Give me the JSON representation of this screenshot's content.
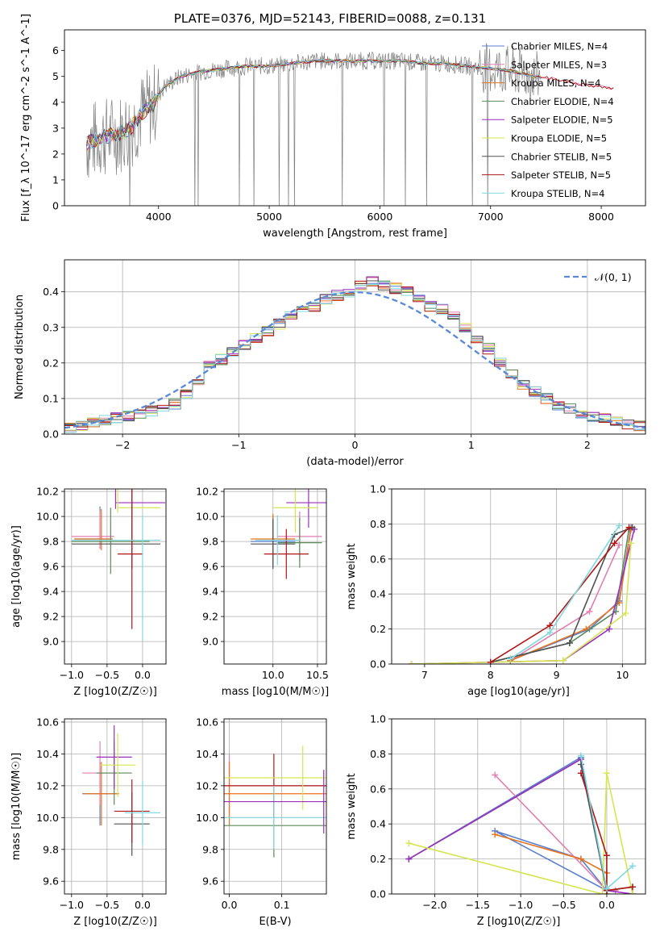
{
  "figure_title": "PLATE=0376, MJD=52143, FIBERID=0088, z=0.131",
  "colors": {
    "Chabrier MILES": "#5b7fd0",
    "Salpeter MILES": "#e07fb0",
    "Kroupa MILES": "#e8731e",
    "Chabrier ELODIE": "#5a8a5a",
    "Salpeter ELODIE": "#9b2fbe",
    "Kroupa ELODIE": "#d6e550",
    "Chabrier STELIB": "#505050",
    "Salpeter STELIB": "#b01818",
    "Kroupa STELIB": "#80d8e0",
    "data": "#808080",
    "normal": "#5a88d8"
  },
  "chart_data": [
    {
      "type": "line",
      "title": "PLATE=0376, MJD=52143, FIBERID=0088, z=0.131",
      "xlabel": "wavelength [Angstrom, rest frame]",
      "ylabel": "Flux [f_λ 10^-17 erg cm^-2 s^-1 A^-1]",
      "xlim": [
        3150,
        8400
      ],
      "ylim": [
        0,
        6.8
      ],
      "xticks": [
        4000,
        5000,
        6000,
        7000,
        8000
      ],
      "yticks": [
        0,
        1,
        2,
        3,
        4,
        5,
        6
      ],
      "legend_position": "top-right",
      "legend": [
        "Chabrier MILES, N_SSP=4",
        "Salpeter MILES, N_SSP=3",
        "Kroupa MILES, N_SSP=4",
        "Chabrier ELODIE, N_SSP=4",
        "Salpeter ELODIE, N_SSP=5",
        "Kroupa ELODIE, N_SSP=5",
        "Chabrier STELIB, N_SSP=5",
        "Salpeter STELIB, N_SSP=5",
        "Kroupa STELIB, N_SSP=4"
      ],
      "model_continuum": {
        "x": [
          3350,
          3450,
          3550,
          3650,
          3750,
          3850,
          3950,
          4050,
          4200,
          4400,
          4600,
          4800,
          5000,
          5200,
          5400,
          5600,
          5800,
          6000,
          6200,
          6400,
          6600,
          6800,
          7000,
          7200,
          7400,
          7600,
          7800,
          8000,
          8150
        ],
        "y": [
          2.4,
          2.6,
          2.7,
          2.8,
          3.0,
          3.6,
          3.9,
          4.6,
          5.0,
          5.2,
          5.3,
          5.4,
          5.4,
          5.5,
          5.6,
          5.6,
          5.6,
          5.6,
          5.6,
          5.5,
          5.5,
          5.4,
          5.3,
          5.2,
          5.0,
          4.9,
          4.7,
          4.6,
          4.5
        ]
      }
    },
    {
      "type": "line",
      "xlabel": "(data-model)/error",
      "ylabel": "Normed distribution",
      "xlim": [
        -2.5,
        2.5
      ],
      "ylim": [
        0,
        0.49
      ],
      "xticks": [
        -2,
        -1,
        0,
        1,
        2
      ],
      "yticks": [
        0.0,
        0.1,
        0.2,
        0.3,
        0.4
      ],
      "legend": [
        "𝒩(0, 1)"
      ],
      "legend_position": "top-right",
      "histogram_bins": [
        -2.5,
        -2.4,
        -2.3,
        -2.2,
        -2.1,
        -2.0,
        -1.9,
        -1.8,
        -1.7,
        -1.6,
        -1.5,
        -1.4,
        -1.3,
        -1.2,
        -1.1,
        -1.0,
        -0.9,
        -0.8,
        -0.7,
        -0.6,
        -0.5,
        -0.4,
        -0.3,
        -0.2,
        -0.1,
        0.0,
        0.1,
        0.2,
        0.3,
        0.4,
        0.5,
        0.6,
        0.7,
        0.8,
        0.9,
        1.0,
        1.1,
        1.2,
        1.3,
        1.4,
        1.5,
        1.6,
        1.7,
        1.8,
        1.9,
        2.0,
        2.1,
        2.2,
        2.3,
        2.4,
        2.5
      ],
      "histogram_density_approx": [
        0.02,
        0.025,
        0.03,
        0.038,
        0.045,
        0.05,
        0.058,
        0.065,
        0.073,
        0.085,
        0.11,
        0.15,
        0.2,
        0.21,
        0.23,
        0.25,
        0.27,
        0.29,
        0.31,
        0.33,
        0.35,
        0.36,
        0.38,
        0.39,
        0.4,
        0.42,
        0.43,
        0.42,
        0.41,
        0.4,
        0.38,
        0.36,
        0.35,
        0.33,
        0.3,
        0.27,
        0.24,
        0.2,
        0.17,
        0.14,
        0.12,
        0.1,
        0.08,
        0.07,
        0.06,
        0.05,
        0.045,
        0.035,
        0.028,
        0.022
      ]
    },
    {
      "type": "scatter",
      "xlabel": "Z [log10(Z/Z☉)]",
      "ylabel": "age  [log10(age/yr)]",
      "xlim": [
        -1.1,
        0.33
      ],
      "ylim": [
        8.82,
        10.22
      ],
      "xticks": [
        -1.0,
        -0.5,
        0.0
      ],
      "yticks": [
        9.0,
        9.2,
        9.4,
        9.6,
        9.8,
        10.0,
        10.2
      ],
      "points": [
        {
          "series": "Chabrier MILES",
          "x": -0.6,
          "y": 9.82,
          "xerr": [
            0.36,
            0.14
          ],
          "yerr": [
            0.08,
            0.26
          ]
        },
        {
          "series": "Salpeter MILES",
          "x": -0.6,
          "y": 9.84,
          "xerr": [
            0.4,
            0.2
          ],
          "yerr": [
            0.1,
            0.2
          ]
        },
        {
          "series": "Kroupa MILES",
          "x": -0.58,
          "y": 9.82,
          "xerr": [
            0.38,
            0.16
          ],
          "yerr": [
            0.09,
            0.24
          ]
        },
        {
          "series": "Chabrier ELODIE",
          "x": -0.45,
          "y": 9.8,
          "xerr": [
            0.55,
            0.55
          ],
          "yerr": [
            0.26,
            0.27
          ]
        },
        {
          "series": "Salpeter ELODIE",
          "x": -0.38,
          "y": 10.11,
          "xerr": [
            0.0,
            0.7
          ],
          "yerr": [
            0.05,
            1.2
          ]
        },
        {
          "series": "Kroupa ELODIE",
          "x": -0.35,
          "y": 10.07,
          "xerr": [
            0.0,
            0.6
          ],
          "yerr": [
            0.04,
            1.2
          ]
        },
        {
          "series": "Chabrier STELIB",
          "x": -0.15,
          "y": 9.78,
          "xerr": [
            0.85,
            0.4
          ],
          "yerr": [
            0.2,
            0.85
          ]
        },
        {
          "series": "Salpeter STELIB",
          "x": -0.15,
          "y": 9.7,
          "xerr": [
            0.2,
            0.15
          ],
          "yerr": [
            0.6,
            0.75
          ]
        },
        {
          "series": "Kroupa STELIB",
          "x": 0.0,
          "y": 9.81,
          "xerr": [
            1.0,
            0.25
          ],
          "yerr": [
            0.8,
            0.2
          ]
        }
      ]
    },
    {
      "type": "scatter",
      "xlabel": "mass [log10(M/M☉)]",
      "ylabel": "",
      "xlim": [
        9.45,
        10.6
      ],
      "ylim": [
        8.82,
        10.22
      ],
      "xticks": [
        10.0,
        10.5
      ],
      "yticks": [
        9.0,
        9.2,
        9.4,
        9.6,
        9.8,
        10.0,
        10.2
      ],
      "points": [
        {
          "series": "Chabrier MILES",
          "x": 10.0,
          "y": 9.8
        },
        {
          "series": "Salpeter MILES",
          "x": 10.3,
          "y": 9.84
        },
        {
          "series": "Kroupa MILES",
          "x": 10.0,
          "y": 9.82
        },
        {
          "series": "Chabrier ELODIE",
          "x": 10.3,
          "y": 9.79
        },
        {
          "series": "Salpeter ELODIE",
          "x": 10.4,
          "y": 10.11
        },
        {
          "series": "Kroupa ELODIE",
          "x": 10.25,
          "y": 10.07
        },
        {
          "series": "Chabrier STELIB",
          "x": 10.0,
          "y": 9.78
        },
        {
          "series": "Salpeter STELIB",
          "x": 10.15,
          "y": 9.7
        },
        {
          "series": "Kroupa STELIB",
          "x": 10.05,
          "y": 9.81
        }
      ]
    },
    {
      "type": "line",
      "xlabel": "age  [log10(age/yr)]",
      "ylabel": "mass weight",
      "xlim": [
        6.5,
        10.35
      ],
      "ylim": [
        0,
        1
      ],
      "xticks": [
        7,
        8,
        9,
        10
      ],
      "yticks": [
        0.0,
        0.2,
        0.4,
        0.6,
        0.8,
        1.0
      ],
      "series": [
        {
          "name": "Chabrier MILES",
          "x": [
            8.3,
            9.5,
            9.95,
            10.13
          ],
          "y": [
            0.02,
            0.2,
            0.36,
            0.78
          ]
        },
        {
          "name": "Salpeter MILES",
          "x": [
            8.3,
            9.5,
            9.95
          ],
          "y": [
            0.02,
            0.3,
            0.68
          ]
        },
        {
          "name": "Kroupa MILES",
          "x": [
            8.3,
            9.45,
            9.95,
            10.13
          ],
          "y": [
            0.02,
            0.2,
            0.35,
            0.77
          ]
        },
        {
          "name": "Chabrier ELODIE",
          "x": [
            8.0,
            9.2,
            9.9,
            10.1
          ],
          "y": [
            0.01,
            0.12,
            0.3,
            0.77
          ]
        },
        {
          "name": "Salpeter ELODIE",
          "x": [
            6.8,
            9.1,
            9.8,
            10.18
          ],
          "y": [
            0.0,
            0.02,
            0.2,
            0.77
          ]
        },
        {
          "name": "Kroupa ELODIE",
          "x": [
            6.8,
            9.1,
            10.05,
            10.13
          ],
          "y": [
            0.0,
            0.02,
            0.29,
            0.69
          ]
        },
        {
          "name": "Chabrier STELIB",
          "x": [
            8.0,
            9.2,
            9.88,
            10.15
          ],
          "y": [
            0.01,
            0.12,
            0.74,
            0.78
          ]
        },
        {
          "name": "Salpeter STELIB",
          "x": [
            8.0,
            8.9,
            9.88,
            10.1
          ],
          "y": [
            0.01,
            0.22,
            0.69,
            0.78
          ]
        },
        {
          "name": "Kroupa STELIB",
          "x": [
            8.3,
            8.9,
            9.95
          ],
          "y": [
            0.03,
            0.18,
            0.79
          ]
        }
      ]
    },
    {
      "type": "scatter",
      "xlabel": "Z [log10(Z/Z☉)]",
      "ylabel": "mass [log10(M/M☉)]",
      "xlim": [
        -1.1,
        0.33
      ],
      "ylim": [
        9.52,
        10.62
      ],
      "xticks": [
        -1.0,
        -0.5,
        0.0
      ],
      "yticks": [
        9.6,
        9.8,
        10.0,
        10.2,
        10.4,
        10.6
      ],
      "points": [
        {
          "series": "Chabrier MILES",
          "x": -0.6,
          "y": 10.15
        },
        {
          "series": "Salpeter MILES",
          "x": -0.6,
          "y": 10.28
        },
        {
          "series": "Kroupa MILES",
          "x": -0.58,
          "y": 10.15
        },
        {
          "series": "Chabrier ELODIE",
          "x": -0.4,
          "y": 10.28
        },
        {
          "series": "Salpeter ELODIE",
          "x": -0.4,
          "y": 10.38
        },
        {
          "series": "Kroupa ELODIE",
          "x": -0.35,
          "y": 10.33
        },
        {
          "series": "Chabrier STELIB",
          "x": -0.15,
          "y": 9.96
        },
        {
          "series": "Salpeter STELIB",
          "x": -0.15,
          "y": 10.04
        },
        {
          "series": "Kroupa STELIB",
          "x": 0.0,
          "y": 10.03
        }
      ]
    },
    {
      "type": "scatter",
      "xlabel": "E(B-V)",
      "ylabel": "",
      "xlim": [
        -0.01,
        0.185
      ],
      "ylim": [
        9.52,
        10.62
      ],
      "xticks": [
        0.0,
        0.1
      ],
      "yticks": [
        9.6,
        9.8,
        10.0,
        10.2,
        10.4,
        10.6
      ],
      "points": [
        {
          "series": "Salpeter MILES",
          "x": 0.0,
          "y": 10.2
        },
        {
          "series": "Kroupa MILES",
          "x": 0.0,
          "y": 10.15
        },
        {
          "series": "Chabrier ELODIE",
          "x": 0.085,
          "y": 9.95
        },
        {
          "series": "Salpeter STELIB",
          "x": 0.085,
          "y": 10.2
        },
        {
          "series": "Kroupa STELIB",
          "x": 0.085,
          "y": 10.0
        },
        {
          "series": "Kroupa ELODIE",
          "x": 0.14,
          "y": 10.25
        },
        {
          "series": "Salpeter ELODIE",
          "x": 0.18,
          "y": 10.1
        }
      ]
    },
    {
      "type": "line",
      "xlabel": "Z [log10(Z/Z☉)]",
      "ylabel": "mass weight",
      "xlim": [
        -2.5,
        0.45
      ],
      "ylim": [
        0,
        1
      ],
      "xticks": [
        -2.0,
        -1.5,
        -1.0,
        -0.5,
        0.0
      ],
      "yticks": [
        0.0,
        0.2,
        0.4,
        0.6,
        0.8,
        1.0
      ],
      "series": [
        {
          "name": "Chabrier MILES",
          "x": [
            -2.3,
            -0.3,
            0.0,
            -1.3,
            -0.3,
            0.0
          ],
          "y": [
            0.2,
            0.78,
            0.02,
            0.36,
            0.2,
            0.02
          ]
        },
        {
          "name": "Salpeter MILES",
          "x": [
            -1.3,
            0.0,
            0.1
          ],
          "y": [
            0.68,
            0.02,
            0.02
          ]
        },
        {
          "name": "Kroupa MILES",
          "x": [
            -1.3,
            -0.3,
            0.0,
            0.0
          ],
          "y": [
            0.34,
            0.2,
            0.12,
            0.0
          ]
        },
        {
          "name": "Chabrier ELODIE",
          "x": [
            -2.3,
            -0.3,
            0.0
          ],
          "y": [
            0.2,
            0.77,
            0.02
          ]
        },
        {
          "name": "Salpeter ELODIE",
          "x": [
            -2.3,
            -0.3,
            0.0,
            0.3
          ],
          "y": [
            0.2,
            0.77,
            0.02,
            0.0
          ]
        },
        {
          "name": "Kroupa ELODIE",
          "x": [
            -2.3,
            -0.05,
            0.0,
            0.3
          ],
          "y": [
            0.29,
            0.0,
            0.69,
            0.0
          ]
        },
        {
          "name": "Chabrier STELIB",
          "x": [
            -0.3,
            0.0,
            0.3
          ],
          "y": [
            0.74,
            0.02,
            0.04
          ]
        },
        {
          "name": "Salpeter STELIB",
          "x": [
            -0.3,
            0.0,
            0.0,
            0.3
          ],
          "y": [
            0.69,
            0.22,
            0.02,
            0.04
          ]
        },
        {
          "name": "Kroupa STELIB",
          "x": [
            -0.3,
            0.0,
            0.3
          ],
          "y": [
            0.79,
            0.03,
            0.16
          ]
        }
      ]
    }
  ]
}
